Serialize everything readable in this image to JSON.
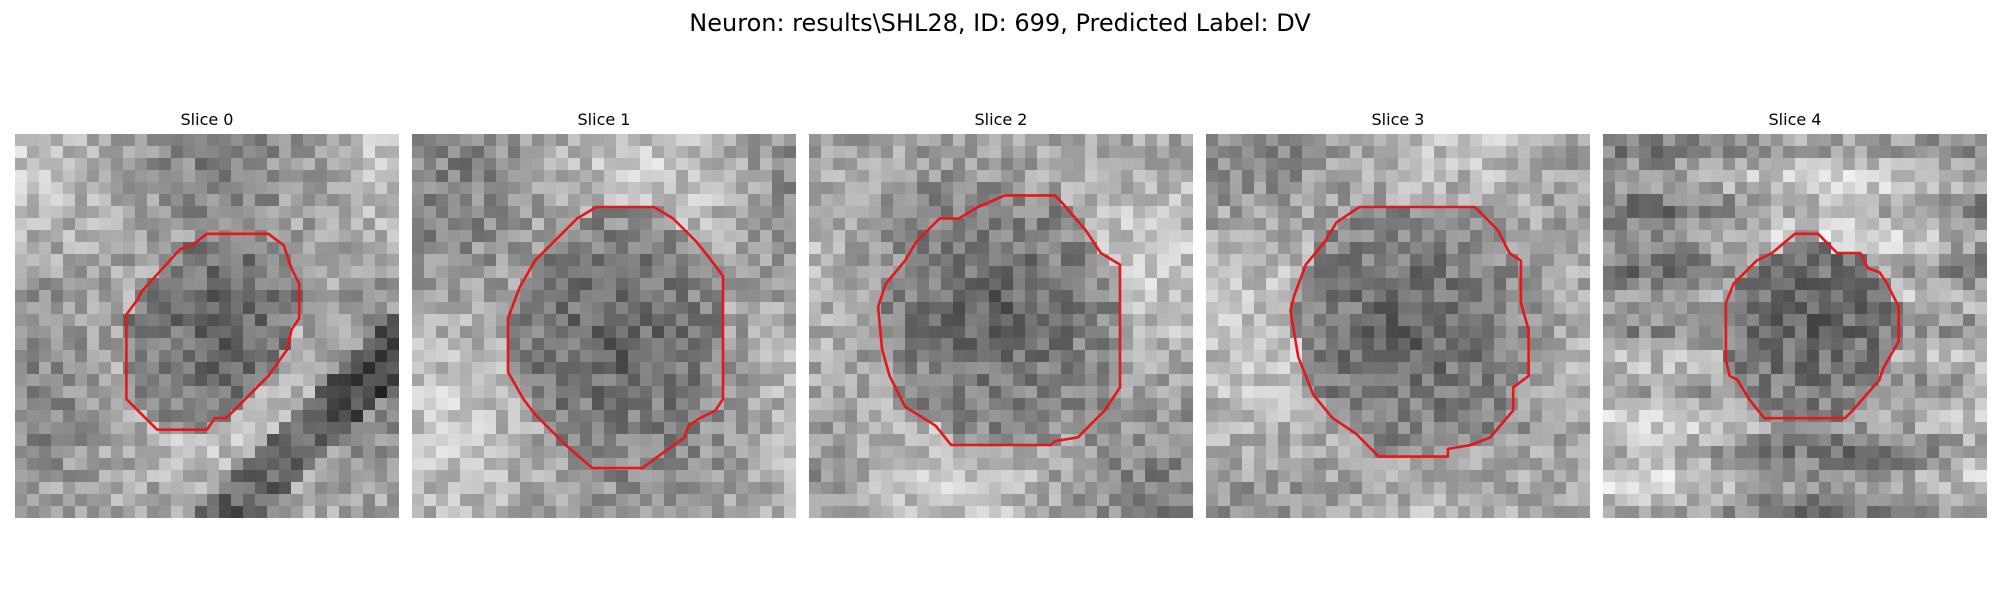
{
  "figure": {
    "title": "Neuron: results\\SHL28, ID: 699, Predicted Label: DV",
    "contour_color": "#e4171b"
  },
  "panels": [
    {
      "title": "Slice 0",
      "seed": 11,
      "contour": [
        [
          0.5,
          0.26
        ],
        [
          0.66,
          0.26
        ],
        [
          0.7,
          0.29
        ],
        [
          0.72,
          0.35
        ],
        [
          0.74,
          0.39
        ],
        [
          0.74,
          0.48
        ],
        [
          0.72,
          0.51
        ],
        [
          0.71,
          0.56
        ],
        [
          0.66,
          0.63
        ],
        [
          0.6,
          0.69
        ],
        [
          0.55,
          0.74
        ],
        [
          0.52,
          0.74
        ],
        [
          0.5,
          0.77
        ],
        [
          0.37,
          0.77
        ],
        [
          0.29,
          0.69
        ],
        [
          0.29,
          0.47
        ],
        [
          0.32,
          0.43
        ],
        [
          0.33,
          0.41
        ],
        [
          0.43,
          0.3
        ],
        [
          0.46,
          0.29
        ]
      ]
    },
    {
      "title": "Slice 1",
      "seed": 23,
      "contour": [
        [
          0.48,
          0.19
        ],
        [
          0.63,
          0.19
        ],
        [
          0.68,
          0.22
        ],
        [
          0.74,
          0.28
        ],
        [
          0.78,
          0.33
        ],
        [
          0.81,
          0.37
        ],
        [
          0.81,
          0.69
        ],
        [
          0.79,
          0.72
        ],
        [
          0.75,
          0.74
        ],
        [
          0.72,
          0.76
        ],
        [
          0.71,
          0.79
        ],
        [
          0.64,
          0.84
        ],
        [
          0.6,
          0.87
        ],
        [
          0.47,
          0.87
        ],
        [
          0.4,
          0.81
        ],
        [
          0.32,
          0.73
        ],
        [
          0.29,
          0.69
        ],
        [
          0.25,
          0.62
        ],
        [
          0.25,
          0.55
        ],
        [
          0.25,
          0.48
        ],
        [
          0.28,
          0.4
        ],
        [
          0.32,
          0.33
        ],
        [
          0.38,
          0.27
        ],
        [
          0.43,
          0.22
        ]
      ]
    },
    {
      "title": "Slice 2",
      "seed": 37,
      "contour": [
        [
          0.51,
          0.16
        ],
        [
          0.64,
          0.16
        ],
        [
          0.66,
          0.18
        ],
        [
          0.72,
          0.25
        ],
        [
          0.76,
          0.31
        ],
        [
          0.81,
          0.34
        ],
        [
          0.81,
          0.66
        ],
        [
          0.77,
          0.72
        ],
        [
          0.7,
          0.79
        ],
        [
          0.64,
          0.8
        ],
        [
          0.63,
          0.81
        ],
        [
          0.37,
          0.81
        ],
        [
          0.33,
          0.76
        ],
        [
          0.25,
          0.71
        ],
        [
          0.21,
          0.63
        ],
        [
          0.19,
          0.56
        ],
        [
          0.18,
          0.45
        ],
        [
          0.2,
          0.39
        ],
        [
          0.25,
          0.33
        ],
        [
          0.28,
          0.28
        ],
        [
          0.34,
          0.22
        ],
        [
          0.39,
          0.22
        ],
        [
          0.44,
          0.19
        ]
      ]
    },
    {
      "title": "Slice 3",
      "seed": 51,
      "contour": [
        [
          0.4,
          0.19
        ],
        [
          0.7,
          0.19
        ],
        [
          0.76,
          0.25
        ],
        [
          0.79,
          0.31
        ],
        [
          0.82,
          0.33
        ],
        [
          0.82,
          0.44
        ],
        [
          0.84,
          0.51
        ],
        [
          0.84,
          0.63
        ],
        [
          0.8,
          0.66
        ],
        [
          0.8,
          0.72
        ],
        [
          0.74,
          0.79
        ],
        [
          0.69,
          0.81
        ],
        [
          0.63,
          0.82
        ],
        [
          0.63,
          0.84
        ],
        [
          0.45,
          0.84
        ],
        [
          0.39,
          0.78
        ],
        [
          0.33,
          0.74
        ],
        [
          0.28,
          0.68
        ],
        [
          0.26,
          0.63
        ],
        [
          0.24,
          0.58
        ],
        [
          0.23,
          0.52
        ],
        [
          0.22,
          0.46
        ],
        [
          0.23,
          0.42
        ],
        [
          0.26,
          0.34
        ],
        [
          0.31,
          0.28
        ],
        [
          0.34,
          0.23
        ],
        [
          0.37,
          0.21
        ]
      ]
    },
    {
      "title": "Slice 4",
      "seed": 67,
      "contour": [
        [
          0.5,
          0.26
        ],
        [
          0.56,
          0.26
        ],
        [
          0.59,
          0.29
        ],
        [
          0.61,
          0.31
        ],
        [
          0.67,
          0.31
        ],
        [
          0.69,
          0.35
        ],
        [
          0.72,
          0.36
        ],
        [
          0.74,
          0.39
        ],
        [
          0.77,
          0.45
        ],
        [
          0.77,
          0.54
        ],
        [
          0.73,
          0.61
        ],
        [
          0.72,
          0.64
        ],
        [
          0.65,
          0.72
        ],
        [
          0.63,
          0.74
        ],
        [
          0.42,
          0.74
        ],
        [
          0.38,
          0.69
        ],
        [
          0.35,
          0.64
        ],
        [
          0.33,
          0.63
        ],
        [
          0.32,
          0.59
        ],
        [
          0.32,
          0.44
        ],
        [
          0.34,
          0.39
        ],
        [
          0.4,
          0.33
        ],
        [
          0.44,
          0.31
        ]
      ]
    }
  ]
}
